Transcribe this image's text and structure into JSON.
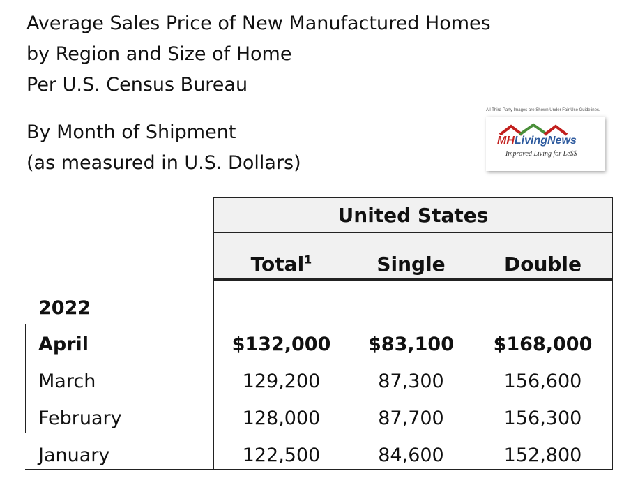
{
  "title_lines": [
    "Average Sales Price of New Manufactured Homes",
    "by Region and Size of Home",
    "Per U.S. Census Bureau"
  ],
  "subtitle_lines": [
    "By Month of Shipment",
    "(as measured in U.S. Dollars)"
  ],
  "logo": {
    "notice": "All Third-Party Images are Shown Under Fair Use Guidelines.",
    "brand_mh": "MH",
    "brand_rest": "LivingNews",
    "tagline": "Improved Living for Le$$"
  },
  "table": {
    "group_header": "United States",
    "columns": [
      "Total",
      "Single",
      "Double"
    ],
    "total_footnote": "1",
    "year": "2022",
    "rows": [
      {
        "label": "April",
        "values": [
          "$132,000",
          "$83,100",
          "$168,000"
        ],
        "bold": true
      },
      {
        "label": "March",
        "values": [
          "129,200",
          "87,300",
          "156,600"
        ],
        "bold": false
      },
      {
        "label": "February",
        "values": [
          "128,000",
          "87,700",
          "156,300"
        ],
        "bold": false
      },
      {
        "label": "January",
        "values": [
          "122,500",
          "84,600",
          "152,800"
        ],
        "bold": false
      }
    ]
  }
}
